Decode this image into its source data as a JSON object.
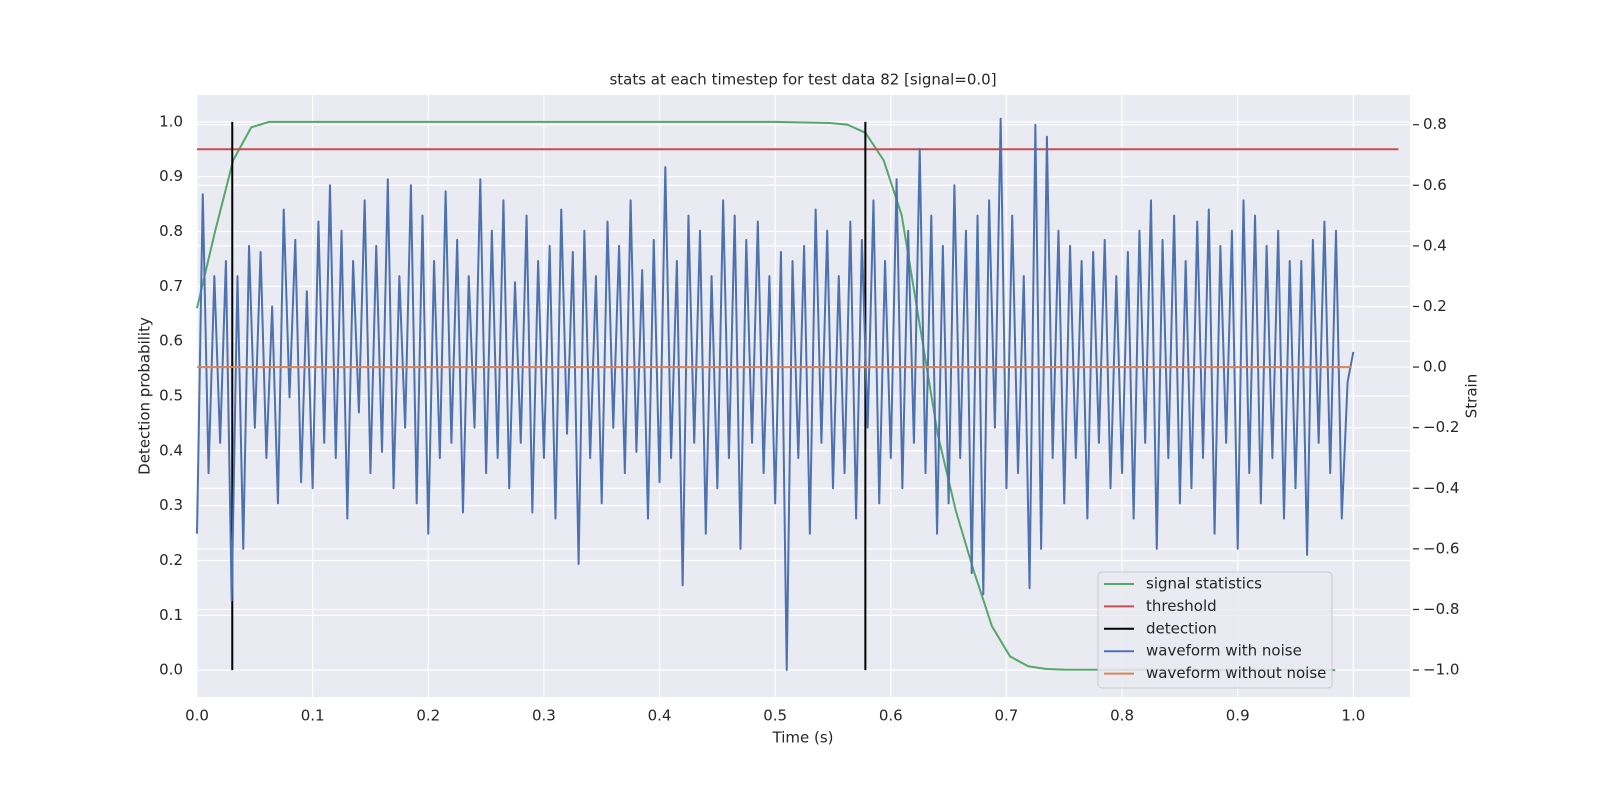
{
  "chart_data": {
    "type": "line",
    "title": "stats at each timestep for test data 82 [signal=0.0]",
    "xlabel": "Time (s)",
    "ylabel": "Detection probability",
    "y2label": "Strain",
    "xlim": [
      0,
      1.049
    ],
    "ylim": [
      -0.049,
      1.049
    ],
    "y2lim": [
      -1.089,
      0.898
    ],
    "xticks": [
      {
        "value": 0,
        "label": "0.0"
      },
      0.1,
      0.2,
      0.3,
      0.4,
      0.5,
      0.6,
      0.7,
      0.8,
      0.9,
      {
        "value": 1,
        "label": "1.0"
      }
    ],
    "yticks": [
      {
        "value": 0,
        "label": "0.0"
      },
      0.1,
      0.2,
      0.3,
      0.4,
      0.5,
      0.6,
      0.7,
      0.8,
      0.9,
      {
        "value": 1,
        "label": "1.0"
      }
    ],
    "y2ticks": [
      {
        "value": -1,
        "label": "−1.0"
      },
      {
        "value": -0.8,
        "label": "−0.8"
      },
      {
        "value": -0.6,
        "label": "−0.6"
      },
      {
        "value": -0.4,
        "label": "−0.4"
      },
      {
        "value": -0.2,
        "label": "−0.2"
      },
      {
        "value": 0,
        "label": "0.0"
      },
      0.2,
      0.4,
      0.6,
      0.8
    ],
    "grid": true,
    "legend": "lower right",
    "series": [
      {
        "name": "signal statistics",
        "color": "#55a868",
        "axis": "y",
        "x": [
          0,
          0.0156,
          0.0313,
          0.0469,
          0.0625,
          0.5,
          0.5469,
          0.5625,
          0.5781,
          0.5938,
          0.6094,
          0.625,
          0.6406,
          0.6563,
          0.6719,
          0.6875,
          0.7031,
          0.7188,
          0.7344,
          0.75,
          0.9844
        ],
        "values": [
          0.66,
          0.8,
          0.93,
          0.99,
          1.0,
          1.0,
          0.998,
          0.995,
          0.98,
          0.93,
          0.83,
          0.63,
          0.43,
          0.29,
          0.18,
          0.08,
          0.025,
          0.007,
          0.002,
          0.001,
          0
        ]
      },
      {
        "name": "threshold",
        "color": "#c44e52",
        "axis": "y",
        "x": [
          0,
          1.039
        ],
        "values": [
          0.95,
          0.95
        ]
      },
      {
        "name": "detection",
        "color": "#000000",
        "axis": "y",
        "x": [
          0.0305,
          0.578
        ],
        "ymin": [
          0,
          0
        ],
        "ymax": [
          1,
          1
        ]
      },
      {
        "name": "waveform with noise",
        "color": "#4c72b0",
        "axis": "y2",
        "x": [
          0,
          0.005,
          0.01,
          0.015,
          0.02,
          0.025,
          0.03,
          0.035,
          0.04,
          0.045,
          0.05,
          0.055,
          0.06,
          0.065,
          0.07,
          0.075,
          0.08,
          0.085,
          0.09,
          0.095,
          0.1,
          0.105,
          0.11,
          0.115,
          0.12,
          0.125,
          0.13,
          0.135,
          0.14,
          0.145,
          0.15,
          0.155,
          0.16,
          0.165,
          0.17,
          0.175,
          0.18,
          0.185,
          0.19,
          0.195,
          0.2,
          0.205,
          0.21,
          0.215,
          0.22,
          0.225,
          0.23,
          0.235,
          0.24,
          0.245,
          0.25,
          0.255,
          0.26,
          0.265,
          0.27,
          0.275,
          0.28,
          0.285,
          0.29,
          0.295,
          0.3,
          0.305,
          0.31,
          0.315,
          0.32,
          0.325,
          0.33,
          0.335,
          0.34,
          0.345,
          0.35,
          0.355,
          0.36,
          0.365,
          0.37,
          0.375,
          0.38,
          0.385,
          0.39,
          0.395,
          0.4,
          0.405,
          0.41,
          0.415,
          0.42,
          0.425,
          0.43,
          0.435,
          0.44,
          0.445,
          0.45,
          0.455,
          0.46,
          0.465,
          0.47,
          0.475,
          0.48,
          0.485,
          0.49,
          0.495,
          0.5,
          0.505,
          0.51,
          0.515,
          0.52,
          0.525,
          0.53,
          0.535,
          0.54,
          0.545,
          0.55,
          0.555,
          0.56,
          0.565,
          0.57,
          0.575,
          0.58,
          0.585,
          0.59,
          0.595,
          0.6,
          0.605,
          0.61,
          0.615,
          0.62,
          0.625,
          0.63,
          0.635,
          0.64,
          0.645,
          0.65,
          0.655,
          0.66,
          0.665,
          0.67,
          0.675,
          0.68,
          0.685,
          0.69,
          0.695,
          0.7,
          0.705,
          0.71,
          0.715,
          0.72,
          0.725,
          0.73,
          0.735,
          0.74,
          0.745,
          0.75,
          0.755,
          0.76,
          0.765,
          0.77,
          0.775,
          0.78,
          0.785,
          0.79,
          0.795,
          0.8,
          0.805,
          0.81,
          0.815,
          0.82,
          0.825,
          0.83,
          0.835,
          0.84,
          0.845,
          0.85,
          0.855,
          0.86,
          0.865,
          0.87,
          0.875,
          0.88,
          0.885,
          0.89,
          0.895,
          0.9,
          0.905,
          0.91,
          0.915,
          0.92,
          0.925,
          0.93,
          0.935,
          0.94,
          0.945,
          0.95,
          0.955,
          0.96,
          0.965,
          0.97,
          0.975,
          0.98,
          0.985,
          0.99,
          0.995,
          1.0
        ],
        "values": [
          -0.55,
          0.57,
          -0.35,
          0.3,
          -0.25,
          0.35,
          -0.77,
          0.3,
          -0.6,
          0.4,
          -0.2,
          0.38,
          -0.3,
          0.2,
          -0.45,
          0.52,
          -0.1,
          0.42,
          -0.38,
          0.25,
          -0.4,
          0.48,
          -0.25,
          0.6,
          -0.3,
          0.45,
          -0.5,
          0.35,
          -0.15,
          0.55,
          -0.35,
          0.4,
          -0.28,
          0.62,
          -0.4,
          0.3,
          -0.2,
          0.6,
          -0.45,
          0.5,
          -0.55,
          0.35,
          -0.3,
          0.58,
          -0.25,
          0.42,
          -0.48,
          0.3,
          -0.2,
          0.62,
          -0.35,
          0.45,
          -0.3,
          0.55,
          -0.4,
          0.28,
          -0.25,
          0.5,
          -0.48,
          0.35,
          -0.3,
          0.4,
          -0.5,
          0.52,
          -0.22,
          0.38,
          -0.65,
          0.45,
          -0.3,
          0.3,
          -0.45,
          0.48,
          -0.2,
          0.4,
          -0.35,
          0.55,
          -0.28,
          0.32,
          -0.5,
          0.42,
          -0.38,
          0.66,
          -0.3,
          0.35,
          -0.72,
          0.5,
          -0.25,
          0.45,
          -0.55,
          0.3,
          -0.4,
          0.55,
          -0.3,
          0.5,
          -0.6,
          0.42,
          -0.25,
          0.48,
          -0.35,
          0.3,
          -0.45,
          0.38,
          -1.0,
          0.35,
          -0.3,
          0.4,
          -0.55,
          0.52,
          -0.25,
          0.45,
          -0.4,
          0.3,
          -0.35,
          0.48,
          -0.5,
          0.42,
          -0.2,
          0.55,
          -0.45,
          0.35,
          -0.3,
          0.62,
          -0.4,
          0.45,
          -0.25,
          0.72,
          -0.35,
          0.5,
          -0.55,
          0.4,
          -0.45,
          0.6,
          -0.3,
          0.45,
          -0.68,
          0.5,
          -0.75,
          0.55,
          -0.2,
          0.82,
          -0.4,
          0.5,
          -0.35,
          0.3,
          -0.73,
          0.8,
          -0.6,
          0.76,
          -0.3,
          0.45,
          -0.45,
          0.4,
          -0.3,
          0.35,
          -0.5,
          0.38,
          -0.25,
          0.42,
          -0.4,
          0.3,
          -0.35,
          0.38,
          -0.5,
          0.45,
          -0.25,
          0.55,
          -0.6,
          0.42,
          -0.3,
          0.5,
          -0.45,
          0.35,
          -0.4,
          0.48,
          -0.3,
          0.52,
          -0.55,
          0.4,
          -0.25,
          0.45,
          -0.6,
          0.55,
          -0.35,
          0.5,
          -0.45,
          0.4,
          -0.3,
          0.45,
          -0.5,
          0.35,
          -0.4,
          0.35,
          -0.62,
          0.42,
          -0.25,
          0.48,
          -0.35,
          0.45,
          -0.5,
          -0.05,
          0.05
        ]
      },
      {
        "name": "waveform without noise",
        "color": "#dd8452",
        "axis": "y2",
        "x": [
          0,
          0.998
        ],
        "values": [
          0,
          0
        ]
      }
    ]
  }
}
